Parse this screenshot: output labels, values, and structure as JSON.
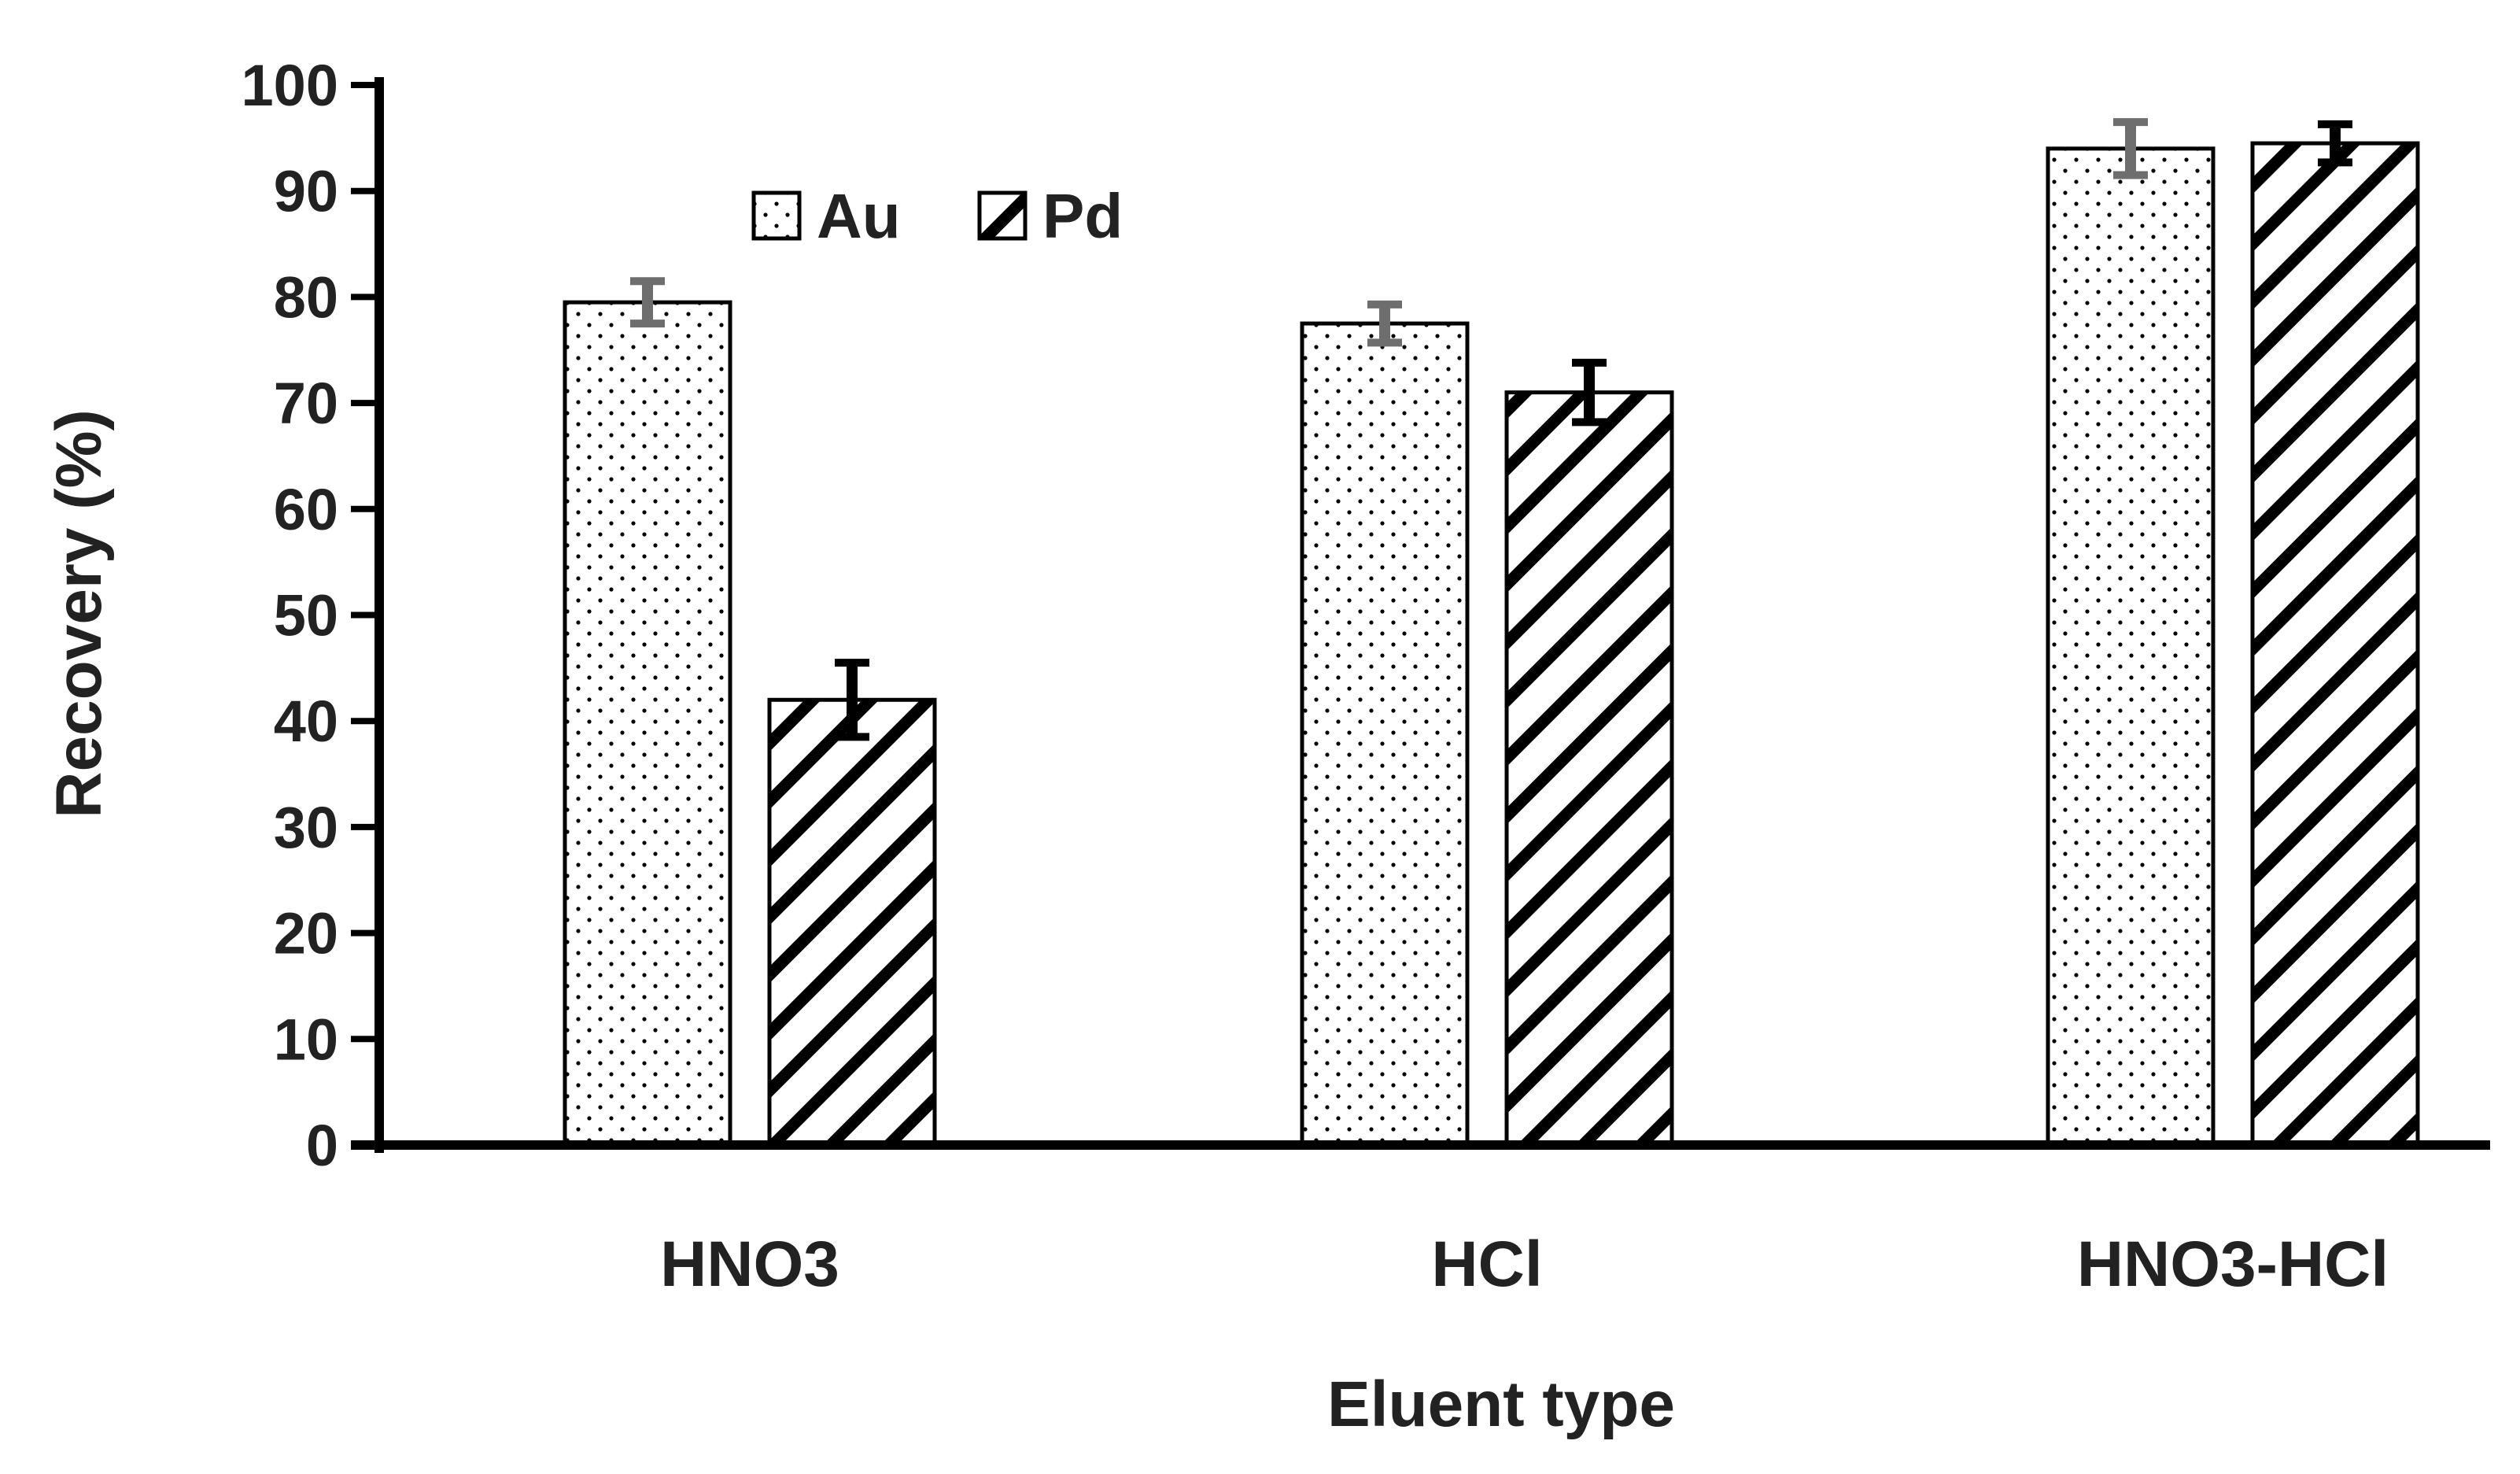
{
  "chart_data": {
    "type": "bar",
    "title": "",
    "xlabel": "Eluent type",
    "ylabel": "Recovery (%)",
    "ylim": [
      0,
      100
    ],
    "yticks": [
      0,
      10,
      20,
      30,
      40,
      50,
      60,
      70,
      80,
      90,
      100
    ],
    "categories": [
      "HNO3",
      "HCl",
      "HNO3-HCl"
    ],
    "series": [
      {
        "name": "Au",
        "pattern": "dots",
        "values": [
          79.5,
          77.5,
          94
        ],
        "errors": [
          2,
          1.8,
          2.5
        ],
        "error_color": "#6e6e6e"
      },
      {
        "name": "Pd",
        "pattern": "diagonal-hatch",
        "values": [
          42,
          71,
          94.5
        ],
        "errors": [
          3.5,
          2.8,
          1.8
        ],
        "error_color": "#000000"
      }
    ],
    "legend_position": "top-left",
    "grid": false
  },
  "colors": {
    "axis": "#000000",
    "bar_fill": "#ffffff",
    "bar_stroke": "#000000",
    "text": "#222222"
  }
}
